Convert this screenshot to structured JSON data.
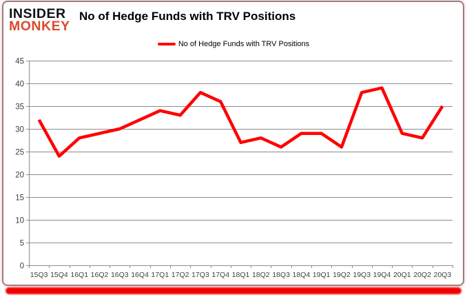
{
  "logo": {
    "line1": "INSIDER",
    "line2": "MONKEY"
  },
  "header": {
    "title": "No of Hedge Funds with TRV Positions"
  },
  "legend": {
    "label": "No of Hedge Funds with TRV Positions"
  },
  "colors": {
    "line": "#ff0000",
    "grid": "#8c8c8c",
    "axis_text": "#404040",
    "logo_black": "#111111",
    "logo_red": "#db4a2e",
    "card_border": "#9c7f7f",
    "bottom_bar": "#f20000"
  },
  "chart_data": {
    "type": "line",
    "title": "No of Hedge Funds with TRV Positions",
    "categories": [
      "15Q3",
      "15Q4",
      "16Q1",
      "16Q2",
      "16Q3",
      "16Q4",
      "17Q1",
      "17Q2",
      "17Q3",
      "17Q4",
      "18Q1",
      "18Q2",
      "18Q3",
      "18Q4",
      "19Q1",
      "19Q2",
      "19Q3",
      "19Q4",
      "20Q1",
      "20Q2",
      "20Q3"
    ],
    "series": [
      {
        "name": "No of Hedge Funds with TRV Positions",
        "values": [
          32,
          24,
          28,
          29,
          30,
          32,
          34,
          33,
          38,
          36,
          27,
          28,
          26,
          29,
          29,
          26,
          38,
          39,
          29,
          28,
          35
        ]
      }
    ],
    "xlabel": "",
    "ylabel": "",
    "ylim": [
      0,
      45
    ],
    "ytick_step": 5,
    "grid": true,
    "legend_position": "top"
  }
}
